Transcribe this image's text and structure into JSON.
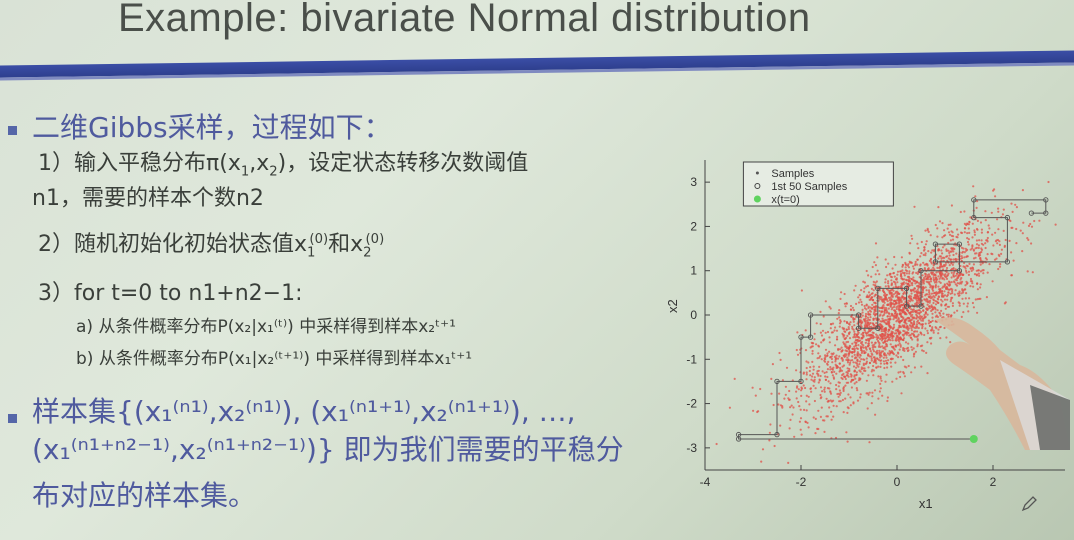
{
  "slide": {
    "title": "Example: bivariate Normal distribution",
    "b1": "二维Gibbs采样，过程如下：",
    "s1a": "1）输入平稳分布π(x",
    "s1a_sub1": "1",
    "s1a_mid": ",x",
    "s1a_sub2": "2",
    "s1a_end": ")，设定状态转移次数阈值",
    "s1b": "n1，需要的样本个数n2",
    "s2_pre": "2）随机初始化初始状态值x",
    "s2_sup1": "(0)",
    "s2_sub1": "1",
    "s2_mid": "和x",
    "s2_sup2": "(0)",
    "s2_sub2": "2",
    "s3": "3）for t=0 to n1+n2−1:",
    "s3a": "a) 从条件概率分布P(x₂|x₁⁽ᵗ⁾) 中采样得到样本x₂ᵗ⁺¹",
    "s3b": "b) 从条件概率分布P(x₁|x₂⁽ᵗ⁺¹⁾) 中采样得到样本x₁ᵗ⁺¹",
    "b2a": "样本集{(x₁⁽ⁿ¹⁾,x₂⁽ⁿ¹⁾), (x₁⁽ⁿ¹⁺¹⁾,x₂⁽ⁿ¹⁺¹⁾), …,",
    "b2b": "(x₁⁽ⁿ¹⁺ⁿ²⁻¹⁾,x₂⁽ⁿ¹⁺ⁿ²⁻¹⁾)} 即为我们需要的平稳分",
    "b2c": "布对应的样本集。"
  },
  "chart_data": {
    "type": "scatter",
    "xlabel": "x1",
    "ylabel": "x2",
    "xlim": [
      -4,
      3.5
    ],
    "ylim": [
      -3.5,
      3.5
    ],
    "xticks": [
      "-4",
      "-2",
      "0",
      "2"
    ],
    "yticks": [
      "3",
      "2",
      "1",
      "0",
      "-1",
      "-2",
      "-3"
    ],
    "legend": {
      "placement": "top-left",
      "entries": [
        "Samples",
        "1st 50 Samples",
        "x(t=0)"
      ]
    },
    "colors": {
      "samples": "#e0524a",
      "path": "#555555",
      "start": "#5fd35f"
    },
    "correlation": 0.8,
    "start_point": [
      1.6,
      -2.8
    ],
    "path_points": [
      [
        1.6,
        -2.8
      ],
      [
        -3.3,
        -2.8
      ],
      [
        -3.3,
        -2.7
      ],
      [
        -2.5,
        -2.7
      ],
      [
        -2.5,
        -1.5
      ],
      [
        -2.0,
        -1.5
      ],
      [
        -2.0,
        -0.5
      ],
      [
        -1.8,
        -0.5
      ],
      [
        -1.8,
        0.0
      ],
      [
        -0.8,
        0.0
      ],
      [
        -0.8,
        -0.3
      ],
      [
        -0.4,
        -0.3
      ],
      [
        -0.4,
        0.6
      ],
      [
        0.2,
        0.6
      ],
      [
        0.2,
        0.2
      ],
      [
        0.5,
        0.2
      ],
      [
        0.5,
        1.0
      ],
      [
        1.3,
        1.0
      ],
      [
        1.3,
        1.6
      ],
      [
        0.8,
        1.6
      ],
      [
        0.8,
        1.2
      ],
      [
        2.3,
        1.2
      ],
      [
        2.3,
        2.2
      ],
      [
        1.6,
        2.2
      ],
      [
        1.6,
        2.6
      ],
      [
        3.1,
        2.6
      ],
      [
        3.1,
        2.3
      ],
      [
        2.8,
        2.3
      ]
    ]
  }
}
